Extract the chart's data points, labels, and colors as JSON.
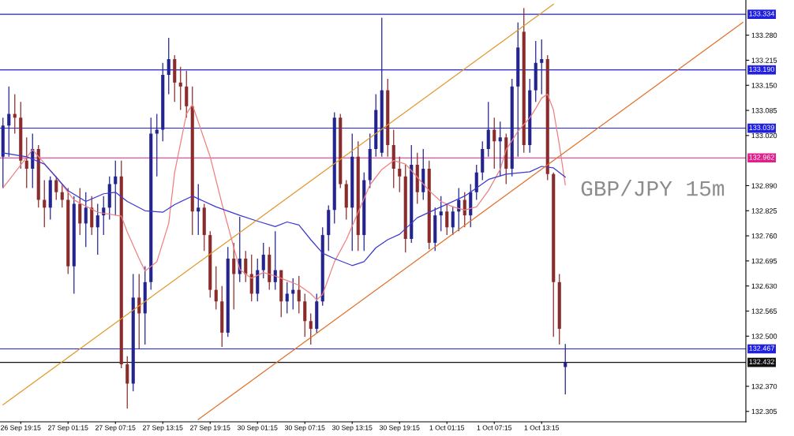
{
  "chart_data": {
    "type": "candlestick",
    "categories": [
      null,
      null,
      null,
      "26 Sep 19:15",
      null,
      null,
      null,
      null,
      null,
      null,
      null,
      "27 Sep 01:15",
      null,
      null,
      null,
      null,
      null,
      null,
      null,
      "27 Sep 07:15",
      null,
      null,
      null,
      null,
      null,
      null,
      null,
      "27 Sep 13:15",
      null,
      null,
      null,
      null,
      null,
      null,
      null,
      "27 Sep 19:15",
      null,
      null,
      null,
      null,
      null,
      null,
      null,
      "30 Sep 01:15",
      null,
      null,
      null,
      null,
      null,
      null,
      null,
      "30 Sep 07:15",
      null,
      null,
      null,
      null,
      null,
      null,
      null,
      "30 Sep 13:15",
      null,
      null,
      null,
      null,
      null,
      null,
      null,
      "30 Sep 19:15",
      null,
      null,
      null,
      null,
      null,
      null,
      null,
      "1 Oct 01:15",
      null,
      null,
      null,
      null,
      null,
      null,
      null,
      "1 Oct 07:15",
      null,
      null,
      null,
      null,
      null,
      null,
      null,
      "1 Oct 13:15",
      null,
      null,
      null,
      null,
      null,
      null,
      null,
      null,
      null,
      null,
      null,
      null,
      null,
      null,
      null,
      null,
      null,
      null,
      null,
      null,
      null,
      null,
      null,
      null,
      null,
      null,
      null,
      null,
      null,
      null,
      null,
      null,
      null,
      null
    ],
    "ohlc": [
      [
        132.965,
        133.066,
        132.884,
        133.046
      ],
      [
        133.046,
        133.147,
        132.965,
        133.076
      ],
      [
        133.076,
        133.127,
        133.025,
        133.066
      ],
      [
        133.066,
        133.107,
        132.934,
        132.955
      ],
      [
        132.955,
        133.015,
        132.884,
        132.934
      ],
      [
        132.934,
        133.025,
        132.884,
        132.985
      ],
      [
        132.985,
        132.995,
        132.833,
        132.853
      ],
      [
        132.853,
        132.904,
        132.782,
        132.833
      ],
      [
        132.833,
        132.914,
        132.802,
        132.904
      ],
      [
        132.904,
        132.914,
        132.853,
        132.873
      ],
      [
        132.873,
        132.894,
        132.833,
        132.853
      ],
      [
        132.853,
        132.884,
        132.661,
        132.681
      ],
      [
        132.681,
        132.863,
        132.61,
        132.843
      ],
      [
        132.843,
        132.884,
        132.762,
        132.792
      ],
      [
        132.792,
        132.873,
        132.731,
        132.833
      ],
      [
        132.833,
        132.863,
        132.762,
        132.782
      ],
      [
        132.782,
        132.843,
        132.711,
        132.813
      ],
      [
        132.813,
        132.863,
        132.762,
        132.833
      ],
      [
        132.833,
        132.914,
        132.802,
        132.894
      ],
      [
        132.894,
        132.955,
        132.813,
        132.914
      ],
      [
        132.914,
        132.955,
        132.417,
        132.427
      ],
      [
        132.427,
        132.448,
        132.312,
        132.377
      ],
      [
        132.377,
        132.661,
        132.357,
        132.6
      ],
      [
        132.6,
        132.661,
        132.468,
        132.559
      ],
      [
        132.559,
        132.681,
        132.478,
        132.64
      ],
      [
        132.64,
        133.066,
        132.62,
        133.025
      ],
      [
        133.025,
        133.076,
        132.914,
        133.035
      ],
      [
        133.035,
        133.208,
        133.005,
        133.177
      ],
      [
        133.177,
        133.273,
        133.127,
        133.218
      ],
      [
        133.218,
        133.228,
        133.107,
        133.157
      ],
      [
        133.157,
        133.198,
        133.086,
        133.147
      ],
      [
        133.147,
        133.188,
        133.066,
        133.096
      ],
      [
        133.096,
        133.147,
        132.762,
        132.823
      ],
      [
        132.823,
        132.894,
        132.762,
        132.833
      ],
      [
        132.833,
        132.843,
        132.721,
        132.762
      ],
      [
        132.762,
        132.772,
        132.6,
        132.62
      ],
      [
        132.62,
        132.681,
        132.569,
        132.59
      ],
      [
        132.59,
        132.63,
        132.472,
        132.509
      ],
      [
        132.509,
        132.731,
        132.498,
        132.701
      ],
      [
        132.701,
        132.742,
        132.569,
        132.661
      ],
      [
        132.661,
        132.809,
        132.64,
        132.701
      ],
      [
        132.701,
        132.721,
        132.64,
        132.661
      ],
      [
        132.661,
        132.711,
        132.59,
        132.61
      ],
      [
        132.61,
        132.701,
        132.59,
        132.671
      ],
      [
        132.671,
        132.742,
        132.65,
        132.711
      ],
      [
        132.711,
        132.731,
        132.62,
        132.64
      ],
      [
        132.64,
        132.772,
        132.62,
        132.671
      ],
      [
        132.671,
        132.671,
        132.549,
        132.59
      ],
      [
        132.59,
        132.64,
        132.559,
        132.61
      ],
      [
        132.61,
        132.65,
        132.569,
        132.62
      ],
      [
        132.62,
        132.656,
        132.559,
        132.59
      ],
      [
        132.59,
        132.61,
        132.498,
        132.539
      ],
      [
        132.539,
        132.559,
        132.478,
        132.519
      ],
      [
        132.519,
        132.61,
        132.509,
        132.59
      ],
      [
        132.59,
        132.782,
        132.579,
        132.762
      ],
      [
        132.762,
        132.839,
        132.721,
        132.827
      ],
      [
        132.827,
        133.08,
        132.792,
        133.066
      ],
      [
        133.066,
        133.076,
        132.884,
        132.894
      ],
      [
        132.894,
        132.904,
        132.802,
        132.833
      ],
      [
        132.833,
        133.025,
        132.721,
        132.965
      ],
      [
        132.965,
        133.005,
        132.721,
        132.762
      ],
      [
        132.762,
        132.924,
        132.721,
        132.904
      ],
      [
        132.904,
        133.025,
        132.884,
        132.985
      ],
      [
        132.985,
        133.127,
        132.965,
        133.086
      ],
      [
        132.975,
        133.325,
        132.965,
        133.137
      ],
      [
        133.137,
        133.167,
        132.965,
        132.995
      ],
      [
        132.995,
        133.035,
        132.884,
        132.934
      ],
      [
        132.934,
        132.965,
        132.873,
        132.914
      ],
      [
        132.914,
        132.944,
        132.717,
        132.752
      ],
      [
        132.752,
        132.995,
        132.742,
        132.944
      ],
      [
        132.944,
        132.975,
        132.843,
        132.873
      ],
      [
        132.873,
        132.985,
        132.853,
        132.934
      ],
      [
        132.934,
        132.955,
        132.725,
        132.742
      ],
      [
        132.742,
        132.833,
        132.721,
        132.813
      ],
      [
        132.813,
        132.863,
        132.772,
        132.823
      ],
      [
        132.823,
        132.843,
        132.762,
        132.782
      ],
      [
        132.782,
        132.837,
        132.762,
        132.823
      ],
      [
        132.823,
        132.884,
        132.772,
        132.853
      ],
      [
        132.853,
        132.873,
        132.782,
        132.813
      ],
      [
        132.813,
        132.894,
        132.782,
        132.873
      ],
      [
        132.873,
        132.944,
        132.853,
        132.924
      ],
      [
        132.924,
        133.005,
        132.904,
        132.985
      ],
      [
        132.985,
        133.107,
        132.965,
        133.035
      ],
      [
        133.035,
        133.066,
        132.934,
        133.005
      ],
      [
        133.005,
        133.056,
        132.914,
        133.015
      ],
      [
        133.015,
        133.025,
        132.894,
        132.934
      ],
      [
        132.934,
        133.167,
        132.914,
        133.147
      ],
      [
        133.147,
        133.313,
        132.965,
        133.248
      ],
      [
        133.289,
        133.35,
        132.975,
        132.995
      ],
      [
        132.995,
        133.167,
        132.975,
        133.137
      ],
      [
        133.137,
        133.265,
        133.107,
        133.208
      ],
      [
        133.208,
        133.269,
        133.127,
        133.218
      ],
      [
        133.218,
        133.228,
        132.904,
        132.92
      ],
      [
        132.92,
        132.924,
        132.498,
        132.64
      ],
      [
        132.64,
        132.661,
        132.478,
        132.519
      ],
      [
        132.42,
        132.48,
        132.349,
        132.432
      ],
      null,
      null,
      null,
      null,
      null,
      null,
      null,
      null,
      null,
      null,
      null,
      null,
      null,
      null,
      null,
      null,
      null,
      null,
      null,
      null,
      null,
      null,
      null,
      null,
      null,
      null,
      null,
      null,
      null,
      null
    ],
    "colors": [
      "#24248f",
      "#24248f",
      "#8b2c2c",
      "#8b2c2c",
      "#8b2c2c",
      "#24248f",
      "#8b2c2c",
      "#8b2c2c",
      "#24248f",
      "#8b2c2c",
      "#8b2c2c",
      "#8b2c2c",
      "#24248f",
      "#8b2c2c",
      "#24248f",
      "#8b2c2c",
      "#24248f",
      "#24248f",
      "#24248f",
      "#24248f",
      "#8b2c2c",
      "#8b2c2c",
      "#24248f",
      "#8b2c2c",
      "#24248f",
      "#24248f",
      "#24248f",
      "#24248f",
      "#24248f",
      "#8b2c2c",
      "#8b2c2c",
      "#8b2c2c",
      "#8b2c2c",
      "#24248f",
      "#8b2c2c",
      "#8b2c2c",
      "#8b2c2c",
      "#8b2c2c",
      "#24248f",
      "#8b2c2c",
      "#24248f",
      "#8b2c2c",
      "#8b2c2c",
      "#24248f",
      "#24248f",
      "#8b2c2c",
      "#24248f",
      "#8b2c2c",
      "#24248f",
      "#24248f",
      "#8b2c2c",
      "#8b2c2c",
      "#8b2c2c",
      "#24248f",
      "#24248f",
      "#24248f",
      "#24248f",
      "#8b2c2c",
      "#8b2c2c",
      "#24248f",
      "#8b2c2c",
      "#24248f",
      "#24248f",
      "#24248f",
      "#24248f",
      "#8b2c2c",
      "#8b2c2c",
      "#8b2c2c",
      "#8b2c2c",
      "#24248f",
      "#8b2c2c",
      "#24248f",
      "#8b2c2c",
      "#24248f",
      "#24248f",
      "#8b2c2c",
      "#24248f",
      "#24248f",
      "#8b2c2c",
      "#24248f",
      "#24248f",
      "#24248f",
      "#24248f",
      "#8b2c2c",
      "#24248f",
      "#8b2c2c",
      "#24248f",
      "#24248f",
      "#8b2c2c",
      "#24248f",
      "#24248f",
      "#24248f",
      "#8b2c2c",
      "#8b2c2c",
      "#8b2c2c",
      "#24248f",
      null,
      null,
      null,
      null,
      null,
      null,
      null,
      null,
      null,
      null,
      null,
      null,
      null,
      null,
      null,
      null,
      null,
      null,
      null,
      null,
      null,
      null,
      null,
      null,
      null,
      null,
      null,
      null,
      null,
      null
    ],
    "series": [
      {
        "type": "line",
        "color": "#f08080",
        "values": [
          132.884,
          null,
          null,
          null,
          null,
          132.983,
          null,
          null,
          null,
          132.912,
          null,
          null,
          132.853,
          null,
          null,
          null,
          132.821,
          null,
          null,
          null,
          132.811,
          132.77,
          null,
          132.701,
          132.669,
          null,
          132.693,
          null,
          132.792,
          132.924,
          null,
          133.076,
          133.1,
          null,
          null,
          132.965,
          null,
          132.843,
          null,
          null,
          132.673,
          null,
          132.65,
          null,
          132.665,
          null,
          132.656,
          null,
          132.644,
          null,
          132.632,
          null,
          132.61,
          132.594,
          132.608,
          null,
          132.693,
          null,
          132.75,
          null,
          132.821,
          null,
          132.892,
          null,
          132.932,
          null,
          132.955,
          null,
          132.946,
          null,
          132.912,
          null,
          132.877,
          null,
          132.849,
          null,
          132.835,
          null,
          132.827,
          null,
          132.835,
          null,
          132.877,
          null,
          132.932,
          132.983,
          null,
          133.031,
          null,
          133.066,
          133.09,
          133.117,
          133.127,
          133.086,
          132.995,
          132.892,
          null,
          null,
          null,
          null,
          null,
          null,
          null,
          null,
          null,
          null,
          null,
          null,
          null,
          null,
          null,
          null,
          null,
          null,
          null,
          null,
          null,
          null,
          null,
          null,
          null,
          null,
          null,
          null,
          null,
          null
        ]
      },
      {
        "type": "line",
        "color": "#3a3ad0",
        "values": [
          132.975,
          null,
          null,
          null,
          132.965,
          null,
          null,
          132.946,
          null,
          132.912,
          null,
          132.877,
          null,
          null,
          132.849,
          null,
          null,
          132.869,
          null,
          132.873,
          null,
          132.849,
          null,
          null,
          132.825,
          null,
          null,
          132.821,
          null,
          132.841,
          null,
          null,
          132.863,
          null,
          null,
          null,
          132.835,
          null,
          null,
          null,
          132.813,
          null,
          null,
          132.798,
          null,
          null,
          132.784,
          null,
          132.796,
          null,
          132.788,
          null,
          132.75,
          null,
          132.715,
          null,
          132.701,
          null,
          null,
          132.683,
          null,
          132.693,
          null,
          132.729,
          null,
          132.75,
          null,
          132.764,
          null,
          null,
          132.807,
          null,
          null,
          null,
          132.835,
          null,
          null,
          null,
          132.863,
          null,
          132.884,
          null,
          132.906,
          null,
          null,
          132.92,
          null,
          null,
          null,
          132.926,
          null,
          132.94,
          null,
          132.936,
          null,
          132.912,
          null,
          null,
          null,
          null,
          null,
          null,
          null,
          null,
          null,
          null,
          null,
          null,
          null,
          null,
          null,
          null,
          null,
          null,
          null,
          null,
          null,
          null,
          null,
          null,
          null,
          null,
          null,
          null,
          null,
          null
        ]
      },
      {
        "type": "line",
        "color": "#e0982a",
        "values": [
          132.322,
          null,
          null,
          null,
          null,
          null,
          null,
          null,
          null,
          null,
          null,
          null,
          null,
          null,
          null,
          null,
          null,
          null,
          null,
          null,
          null,
          null,
          null,
          null,
          null,
          null,
          null,
          null,
          null,
          null,
          null,
          null,
          null,
          null,
          null,
          null,
          null,
          null,
          null,
          null,
          null,
          null,
          null,
          null,
          null,
          null,
          null,
          null,
          null,
          null,
          null,
          null,
          null,
          null,
          null,
          null,
          null,
          null,
          null,
          null,
          null,
          null,
          null,
          null,
          null,
          null,
          null,
          null,
          null,
          null,
          null,
          null,
          null,
          null,
          null,
          null,
          null,
          null,
          null,
          null,
          null,
          null,
          null,
          null,
          null,
          null,
          null,
          null,
          null,
          null,
          null,
          null,
          null,
          133.36,
          null,
          null,
          null,
          null,
          null,
          null,
          null,
          null,
          null,
          null,
          null,
          null,
          null,
          null,
          null,
          null,
          null,
          null,
          null,
          null,
          null,
          null,
          null,
          null,
          null,
          null,
          null,
          null,
          null,
          null,
          null,
          null
        ]
      },
      {
        "type": "line",
        "color": "#e0702a",
        "values": [
          null,
          null,
          null,
          null,
          null,
          null,
          null,
          null,
          null,
          null,
          null,
          null,
          null,
          null,
          null,
          null,
          null,
          null,
          null,
          null,
          null,
          null,
          null,
          null,
          null,
          null,
          null,
          null,
          null,
          null,
          null,
          null,
          null,
          132.284,
          null,
          null,
          null,
          null,
          null,
          null,
          null,
          null,
          null,
          null,
          null,
          null,
          null,
          null,
          null,
          null,
          null,
          null,
          null,
          null,
          null,
          null,
          null,
          null,
          null,
          null,
          null,
          null,
          null,
          null,
          null,
          null,
          null,
          null,
          null,
          null,
          null,
          null,
          null,
          null,
          null,
          null,
          null,
          null,
          null,
          null,
          null,
          null,
          null,
          null,
          null,
          null,
          null,
          null,
          null,
          null,
          null,
          null,
          null,
          null,
          null,
          null,
          null,
          null,
          null,
          null,
          null,
          null,
          null,
          null,
          null,
          null,
          null,
          null,
          null,
          null,
          null,
          null,
          null,
          null,
          null,
          null,
          null,
          null,
          null,
          null,
          null,
          null,
          null,
          null,
          null,
          133.313
        ]
      }
    ],
    "ylim": [
      132.278,
      133.37
    ],
    "yticks": [
      132.305,
      {
        "value": 132.37,
        "label": "132.370"
      },
      {
        "value": 132.5,
        "label": "132.500"
      },
      132.565,
      {
        "value": 132.63,
        "label": "132.630"
      },
      132.695,
      {
        "value": 132.76,
        "label": "132.760"
      },
      132.825,
      {
        "value": 132.89,
        "label": "132.890"
      },
      {
        "value": 133.02,
        "label": "133.020"
      },
      133.085,
      {
        "value": 133.15,
        "label": "133.150"
      },
      133.215,
      {
        "value": 133.28,
        "label": "133.280"
      }
    ],
    "ref_lines": [
      {
        "axis": "y",
        "value": 133.334,
        "label": "133.334",
        "color": "#2020e0"
      },
      {
        "axis": "y",
        "value": 133.19,
        "label": "133.190",
        "color": "#2020e0"
      },
      {
        "axis": "y",
        "value": 133.039,
        "label": "133.039",
        "color": "#2020e0"
      },
      {
        "axis": "y",
        "value": 132.962,
        "label": "132.962",
        "color": "#e0208a"
      },
      {
        "axis": "y",
        "value": 132.467,
        "label": "132.467",
        "color": "#2020e0"
      },
      {
        "axis": "y",
        "value": 132.432,
        "label": "132.432",
        "color": "#101010"
      }
    ],
    "annotations": [
      "GBP/JPY 15m"
    ]
  }
}
